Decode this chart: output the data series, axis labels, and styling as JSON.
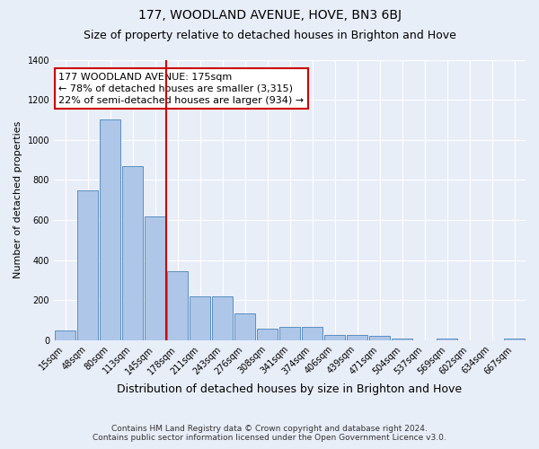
{
  "title": "177, WOODLAND AVENUE, HOVE, BN3 6BJ",
  "subtitle": "Size of property relative to detached houses in Brighton and Hove",
  "xlabel": "Distribution of detached houses by size in Brighton and Hove",
  "ylabel": "Number of detached properties",
  "footer1": "Contains HM Land Registry data © Crown copyright and database right 2024.",
  "footer2": "Contains public sector information licensed under the Open Government Licence v3.0.",
  "annotation_line1": "177 WOODLAND AVENUE: 175sqm",
  "annotation_line2": "← 78% of detached houses are smaller (3,315)",
  "annotation_line3": "22% of semi-detached houses are larger (934) →",
  "categories": [
    "15sqm",
    "48sqm",
    "80sqm",
    "113sqm",
    "145sqm",
    "178sqm",
    "211sqm",
    "243sqm",
    "276sqm",
    "308sqm",
    "341sqm",
    "374sqm",
    "406sqm",
    "439sqm",
    "471sqm",
    "504sqm",
    "537sqm",
    "569sqm",
    "602sqm",
    "634sqm",
    "667sqm"
  ],
  "bar_values": [
    50,
    750,
    1100,
    870,
    620,
    345,
    220,
    220,
    135,
    60,
    65,
    65,
    25,
    25,
    20,
    10,
    0,
    10,
    0,
    0,
    10
  ],
  "bar_color": "#aec6e8",
  "bar_edge_color": "#5a8fc0",
  "vline_color": "#cc0000",
  "vline_x": 4.5,
  "ylim": [
    0,
    1400
  ],
  "yticks": [
    0,
    200,
    400,
    600,
    800,
    1000,
    1200,
    1400
  ],
  "bg_color": "#e8eef8",
  "grid_color": "#ffffff",
  "annotation_box_facecolor": "#ffffff",
  "annotation_box_edgecolor": "#cc0000",
  "title_fontsize": 10,
  "subtitle_fontsize": 9,
  "ylabel_fontsize": 8,
  "xlabel_fontsize": 9,
  "tick_fontsize": 7,
  "footer_fontsize": 6.5
}
